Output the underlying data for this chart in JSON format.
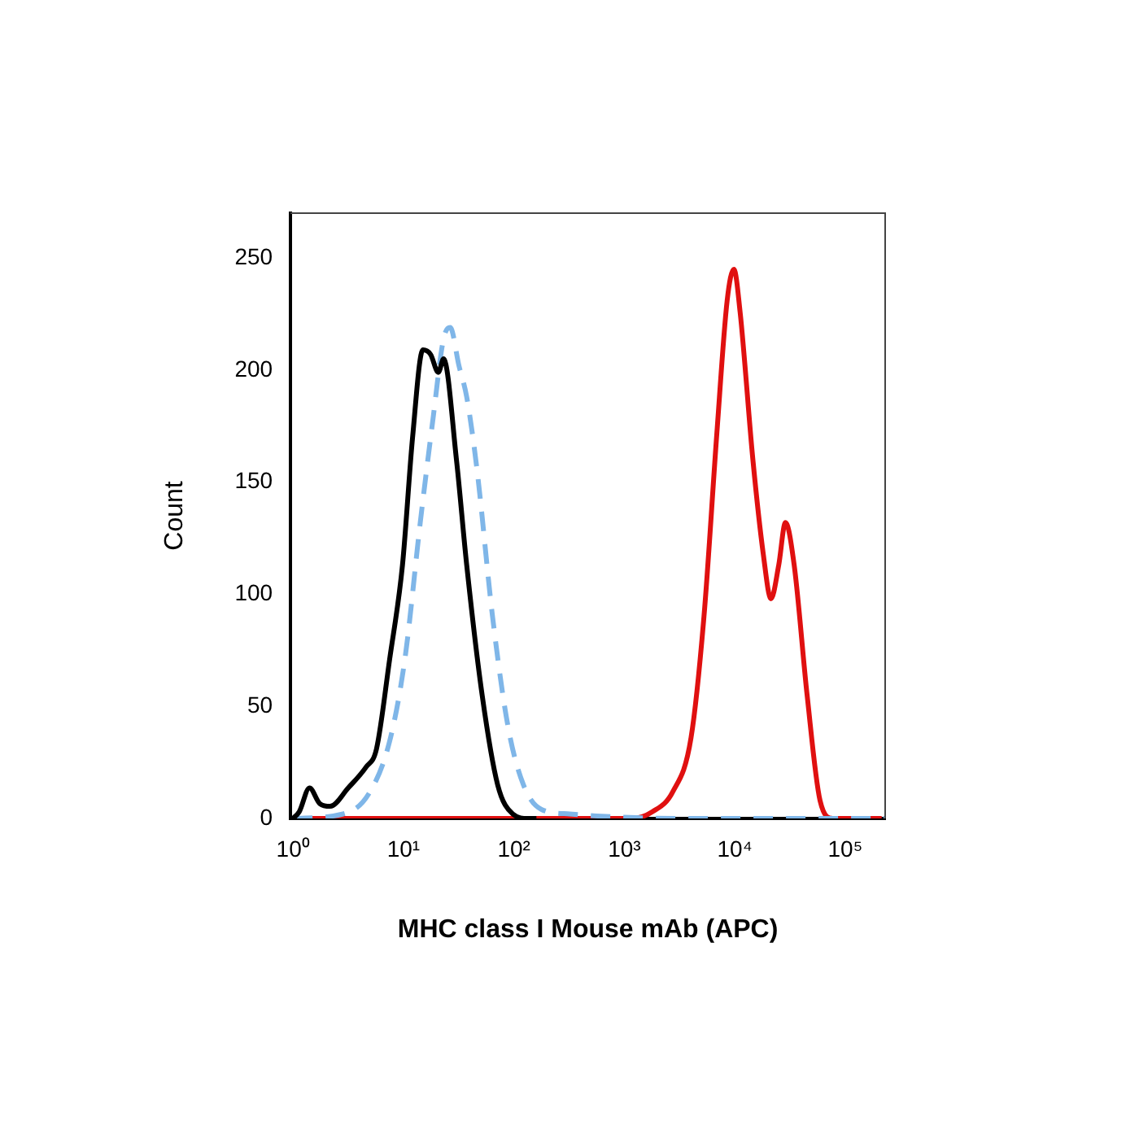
{
  "chart_data": {
    "type": "line",
    "xlabel": "MHC class I Mouse mAb (APC)",
    "ylabel": "Count",
    "log": "x",
    "grid": false,
    "legend": false,
    "marker": "none",
    "xlim": [
      0.95,
      230000
    ],
    "ylim": [
      0,
      270
    ],
    "xticks": [
      {
        "value": 1,
        "label": "10⁰"
      },
      {
        "value": 10,
        "label": "10¹"
      },
      {
        "value": 100,
        "label": "10²"
      },
      {
        "value": 1000,
        "label": "10³"
      },
      {
        "value": 10000,
        "label": "10⁴"
      },
      {
        "value": 100000,
        "label": "10⁵"
      }
    ],
    "yticks": [
      0,
      50,
      100,
      150,
      200,
      250
    ],
    "series": [
      {
        "color": "#000000",
        "line_style": "solid",
        "x": [
          1,
          1.14,
          1.41,
          1.75,
          2.17,
          3.16,
          4.6,
          5.7,
          7.5,
          9.8,
          12.1,
          15.0,
          17.6,
          20.7,
          23.1,
          30.2,
          37.4,
          51.6,
          71.3,
          97.7,
          135,
          160
        ],
        "values": [
          0,
          3,
          13.6,
          6.6,
          5.4,
          13.6,
          23,
          31,
          71,
          113,
          170,
          209,
          207,
          199,
          205,
          160,
          113,
          55,
          15,
          2,
          0,
          0
        ]
      },
      {
        "color": "#7fb6e8",
        "line_style": "dashed",
        "x": [
          1,
          2.84,
          4.85,
          7.46,
          10.3,
          14.2,
          18.6,
          23.1,
          26.5,
          31.8,
          37.4,
          46.5,
          64.1,
          88.5,
          122,
          178,
          321,
          617,
          3000,
          230000
        ],
        "values": [
          0,
          2,
          11,
          34,
          71,
          132,
          179,
          214,
          219,
          202,
          188,
          155,
          90,
          41,
          15,
          4,
          2,
          1,
          0,
          0
        ]
      },
      {
        "color": "#e01010",
        "line_style": "solid",
        "x": [
          1,
          612,
          1167,
          1795,
          2754,
          4018,
          5260,
          6887,
          8531,
          9817,
          11170,
          14590,
          18110,
          21280,
          25000,
          28770,
          34510,
          45190,
          59160,
          77270,
          213800
        ],
        "values": [
          0,
          0,
          0,
          3,
          12,
          36,
          90,
          172,
          231,
          245,
          226,
          160,
          118,
          98,
          113,
          132,
          113,
          55,
          8,
          0,
          0
        ]
      }
    ]
  }
}
